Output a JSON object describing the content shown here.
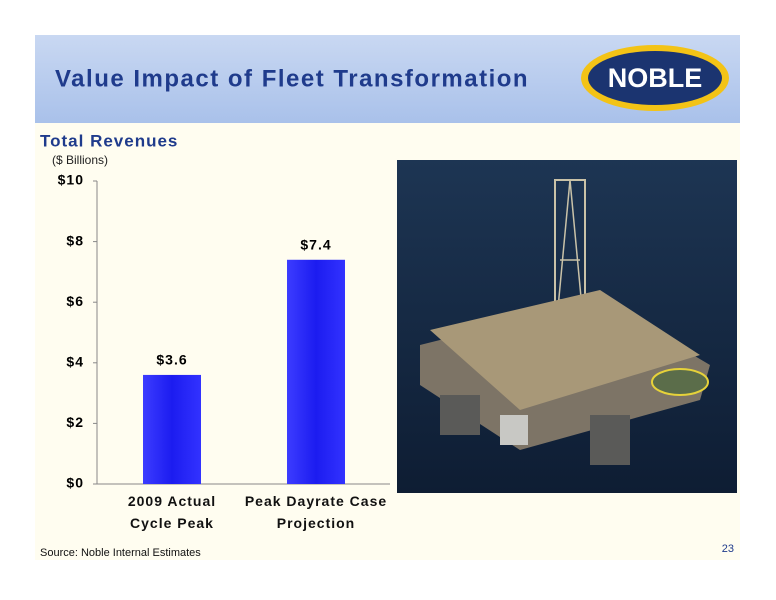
{
  "title": "Value Impact of Fleet Transformation",
  "logo": "NOBLE",
  "source": "Source: Noble Internal Estimates",
  "page_number": "23",
  "chart_data": {
    "type": "bar",
    "title": "Total Revenues",
    "subtitle": "($ Billions)",
    "categories": [
      "2009 Actual Cycle Peak",
      "Peak Dayrate Case Projection"
    ],
    "values": [
      3.6,
      7.4
    ],
    "value_labels": [
      "$3.6",
      "$7.4"
    ],
    "color": "#2323f5",
    "ylim": [
      0,
      10
    ],
    "yticks": [
      {
        "value": 0,
        "label": "$0"
      },
      {
        "value": 2,
        "label": "$2"
      },
      {
        "value": 4,
        "label": "$4"
      },
      {
        "value": 6,
        "label": "$6"
      },
      {
        "value": 8,
        "label": "$8"
      },
      {
        "value": 10,
        "label": "$10"
      }
    ],
    "grid": false
  }
}
